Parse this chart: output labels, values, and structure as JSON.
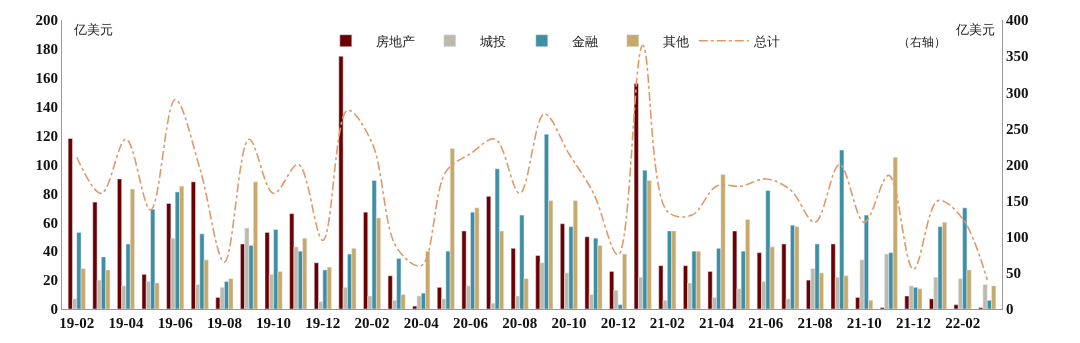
{
  "chart_data": {
    "type": "bar",
    "categories": [
      "19-02",
      null,
      "19-04",
      null,
      "19-06",
      null,
      "19-08",
      null,
      "19-10",
      null,
      "19-12",
      null,
      "20-02",
      null,
      "20-04",
      null,
      "20-06",
      null,
      "20-08",
      null,
      "20-10",
      null,
      "20-12",
      null,
      "21-02",
      null,
      "21-04",
      null,
      "21-06",
      null,
      "21-08",
      null,
      "21-10",
      null,
      "21-12",
      null,
      "22-02",
      null
    ],
    "ylabel": "亿美元",
    "y2label": "亿美元",
    "annotations": [
      "（右轴）"
    ],
    "ylim": [
      0,
      200
    ],
    "yticks": [
      0,
      20,
      40,
      60,
      80,
      100,
      120,
      140,
      160,
      180,
      200
    ],
    "y2lim": [
      0,
      400
    ],
    "y2ticks": [
      0,
      50,
      100,
      150,
      200,
      250,
      300,
      350,
      400
    ],
    "legend": "top",
    "series": [
      {
        "name": "房地产",
        "color": "#6b0000",
        "values": [
          118,
          74,
          90,
          24,
          73,
          88,
          8,
          45,
          53,
          66,
          32,
          175,
          67,
          23,
          2,
          15,
          54,
          78,
          42,
          37,
          59,
          50,
          26,
          156,
          30,
          30,
          26,
          54,
          39,
          45,
          20,
          45,
          8,
          1,
          9,
          7,
          3,
          1
        ]
      },
      {
        "name": "城投",
        "color": "#bdb9ad",
        "values": [
          7,
          20,
          16,
          19,
          49,
          17,
          15,
          56,
          24,
          43,
          5,
          15,
          9,
          6,
          9,
          7,
          16,
          4,
          9,
          32,
          25,
          10,
          13,
          22,
          6,
          18,
          8,
          14,
          19,
          7,
          28,
          22,
          34,
          38,
          16,
          22,
          21,
          17
        ]
      },
      {
        "name": "金融",
        "color": "#3e8fa3",
        "values": [
          53,
          36,
          45,
          69,
          81,
          52,
          19,
          44,
          55,
          40,
          27,
          38,
          89,
          35,
          11,
          40,
          67,
          97,
          65,
          121,
          57,
          49,
          3,
          96,
          54,
          40,
          42,
          40,
          82,
          58,
          45,
          110,
          65,
          39,
          15,
          57,
          70,
          6
        ]
      },
      {
        "name": "其他",
        "color": "#c8a96a",
        "values": [
          28,
          27,
          83,
          18,
          85,
          34,
          21,
          88,
          26,
          49,
          29,
          42,
          63,
          10,
          40,
          111,
          70,
          54,
          21,
          75,
          75,
          44,
          38,
          89,
          54,
          40,
          93,
          62,
          43,
          57,
          25,
          23,
          6,
          105,
          14,
          60,
          27,
          16
        ]
      },
      {
        "name": "总计",
        "type": "line",
        "axis": "y2",
        "color": "#e09a6a",
        "line_style": "dashed",
        "marker": "none",
        "values": [
          210,
          160,
          235,
          137,
          290,
          195,
          65,
          235,
          160,
          200,
          95,
          275,
          230,
          85,
          60,
          190,
          215,
          235,
          160,
          270,
          215,
          160,
          75,
          365,
          135,
          130,
          170,
          170,
          180,
          165,
          120,
          200,
          120,
          185,
          55,
          150,
          125,
          40
        ]
      }
    ]
  }
}
